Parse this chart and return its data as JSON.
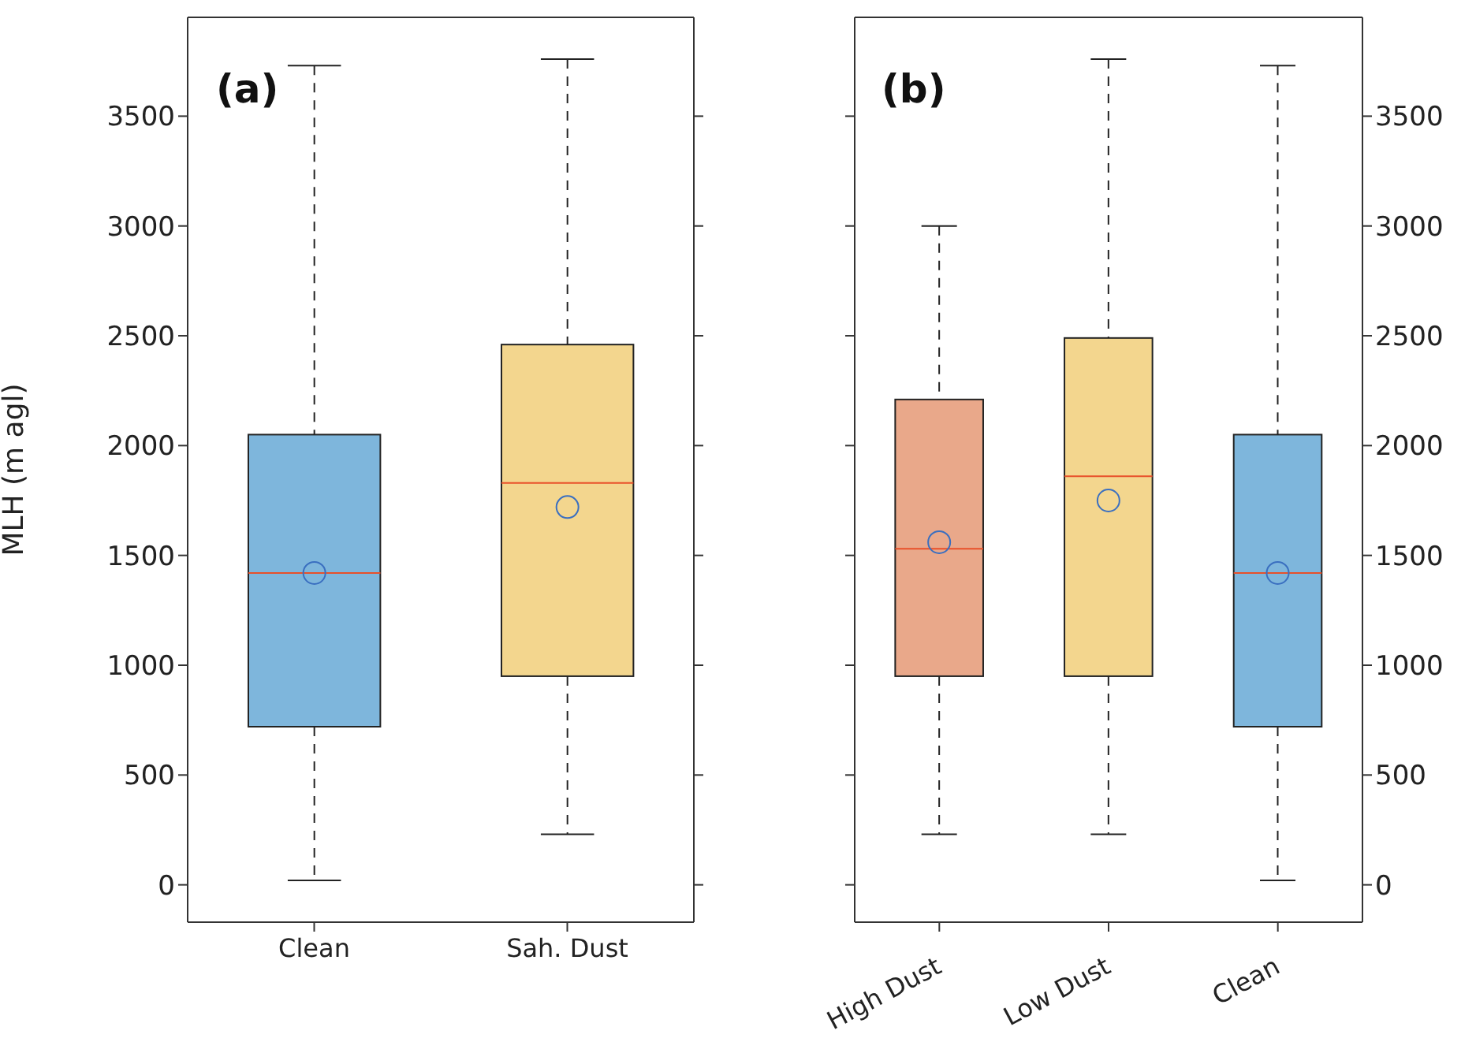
{
  "chart_data": [
    {
      "type": "box",
      "ylabel": "MLH (m agl)",
      "annotations": [
        "(a)"
      ],
      "categories": [
        "Clean",
        "Sah. Dust"
      ],
      "colors": [
        "#7eb6dc",
        "#f3d68e"
      ],
      "boxes": [
        {
          "low": 20,
          "q1": 720,
          "median": 1420,
          "q3": 2050,
          "high": 3730,
          "mean": 1420
        },
        {
          "low": 230,
          "q1": 950,
          "median": 1830,
          "q3": 2460,
          "high": 3760,
          "mean": 1720
        }
      ],
      "ylim": [
        -170,
        3950
      ],
      "yticks": [
        0,
        500,
        1000,
        1500,
        2000,
        2500,
        3000,
        3500
      ]
    },
    {
      "type": "box",
      "annotations": [
        "(b)"
      ],
      "categories": [
        "High Dust",
        "Low Dust",
        "Clean"
      ],
      "series": [
        {
          "axis": "y2",
          "colors": [
            "#e9a88a",
            "#f3d68e",
            "#7eb6dc"
          ],
          "boxes": [
            {
              "low": 230,
              "q1": 950,
              "median": 1530,
              "q3": 2210,
              "high": 3000,
              "mean": 1560
            },
            {
              "low": 230,
              "q1": 950,
              "median": 1860,
              "q3": 2490,
              "high": 3760,
              "mean": 1750
            },
            {
              "low": 20,
              "q1": 720,
              "median": 1420,
              "q3": 2050,
              "high": 3730,
              "mean": 1420
            }
          ]
        }
      ],
      "y2lim": [
        -170,
        3950
      ],
      "y2ticks": [
        0,
        500,
        1000,
        1500,
        2000,
        2500,
        3000,
        3500
      ]
    }
  ]
}
